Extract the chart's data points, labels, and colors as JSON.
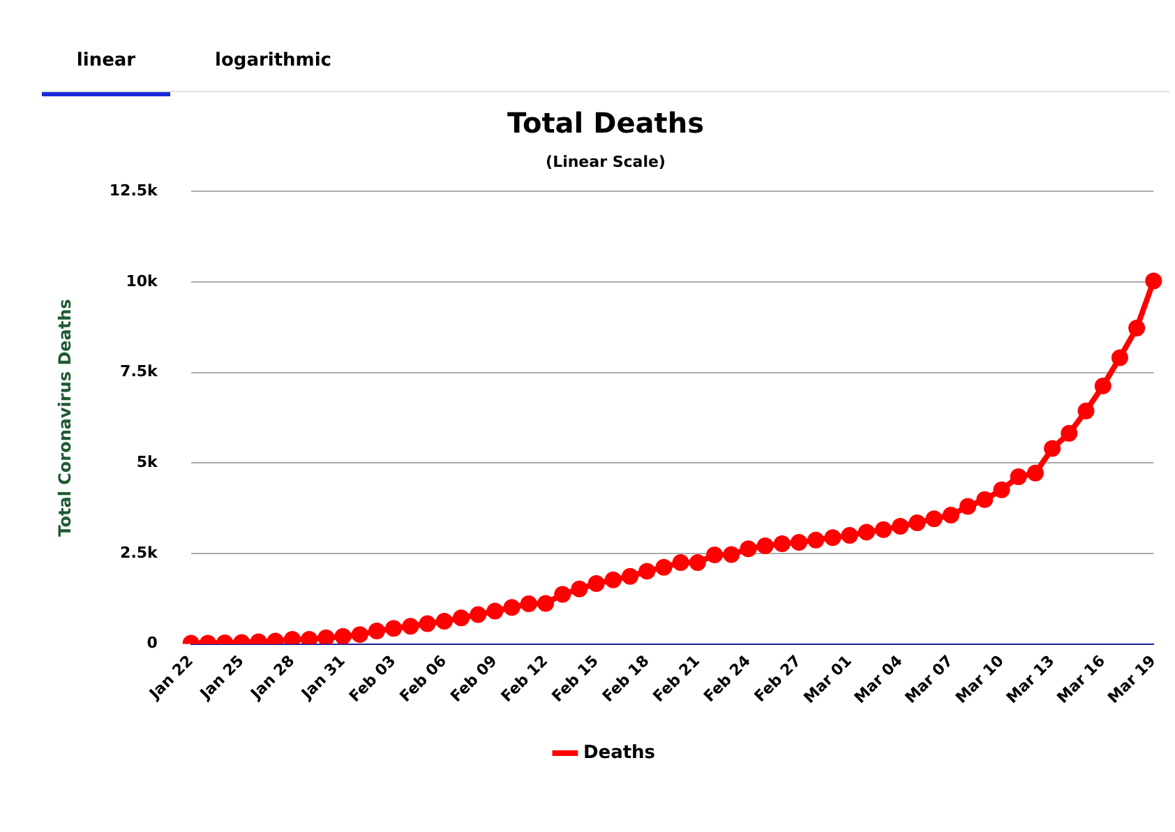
{
  "chart_data": {
    "type": "line",
    "title": "Total Deaths",
    "subtitle": "(Linear Scale)",
    "ylabel": "Total Coronavirus Deaths",
    "annotations": [
      "linear",
      "logarithmic"
    ],
    "categories": [
      "Jan 22",
      null,
      null,
      "Jan 25",
      null,
      null,
      "Jan 28",
      null,
      null,
      "Jan 31",
      null,
      null,
      "Feb 03",
      null,
      null,
      "Feb 06",
      null,
      null,
      "Feb 09",
      null,
      null,
      "Feb 12",
      null,
      null,
      "Feb 15",
      null,
      null,
      "Feb 18",
      null,
      null,
      "Feb 21",
      null,
      null,
      "Feb 24",
      null,
      null,
      "Feb 27",
      null,
      null,
      "Mar 01",
      null,
      null,
      "Mar 04",
      null,
      null,
      "Mar 07",
      null,
      null,
      "Mar 10",
      null,
      null,
      "Mar 13",
      null,
      null,
      "Mar 16",
      null,
      null,
      "Mar 19"
    ],
    "series": [
      {
        "name": "Deaths",
        "color": "#ff0000",
        "values": [
          20,
          20,
          30,
          40,
          60,
          80,
          130,
          130,
          170,
          210,
          260,
          360,
          430,
          490,
          560,
          630,
          720,
          810,
          910,
          1010,
          1110,
          1120,
          1370,
          1520,
          1670,
          1770,
          1870,
          2010,
          2120,
          2250,
          2250,
          2460,
          2470,
          2630,
          2710,
          2770,
          2810,
          2870,
          2940,
          3000,
          3090,
          3160,
          3250,
          3350,
          3460,
          3560,
          3800,
          3990,
          4260,
          4620,
          4720,
          5400,
          5820,
          6440,
          7130,
          7910,
          8730,
          10030
        ]
      }
    ],
    "ylim": [
      0,
      12500
    ],
    "yticks": [
      0,
      {
        "value": 2500,
        "label": "2.5k"
      },
      {
        "value": 5000,
        "label": "5k"
      },
      {
        "value": 7500,
        "label": "7.5k"
      },
      {
        "value": 10000,
        "label": "10k"
      },
      {
        "value": 12500,
        "label": "12.5k"
      }
    ],
    "grid": "y",
    "legend": "bottom",
    "marker": "circle",
    "line_style": "solid"
  }
}
